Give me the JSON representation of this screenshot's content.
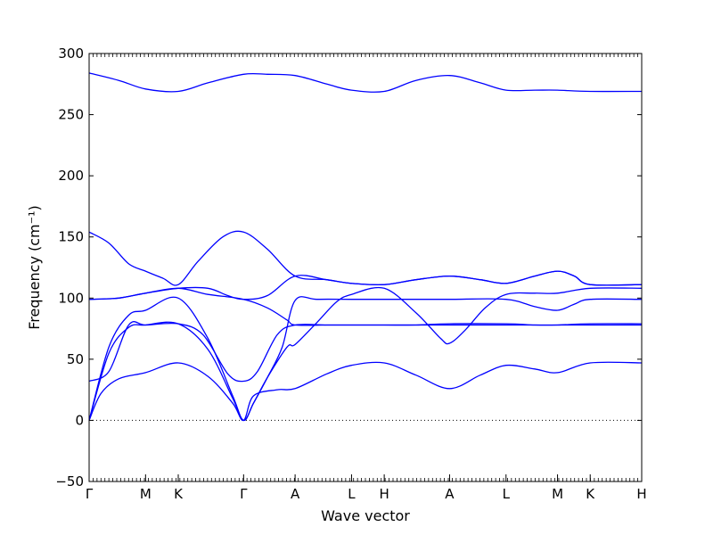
{
  "chart_data": {
    "type": "line",
    "title": "",
    "xlabel": "Wave vector",
    "ylabel": "Frequency (cm⁻¹)",
    "ylim": [
      -50,
      300
    ],
    "yticks": [
      -50,
      0,
      50,
      100,
      150,
      200,
      250,
      300
    ],
    "grid": false,
    "zero_line": "dotted",
    "line_color": "#0000ff",
    "high_symmetry_points": [
      {
        "label": "Γ",
        "x": 0.0
      },
      {
        "label": "M",
        "x": 0.57
      },
      {
        "label": "K",
        "x": 0.9
      },
      {
        "label": "Γ",
        "x": 1.56
      },
      {
        "label": "A",
        "x": 2.08
      },
      {
        "label": "L",
        "x": 2.65
      },
      {
        "label": "H",
        "x": 2.98
      },
      {
        "label": "A",
        "x": 3.64
      },
      {
        "label": "L",
        "x": 4.21
      },
      {
        "label": "M",
        "x": 4.73
      },
      {
        "label": "K",
        "x": 5.06
      },
      {
        "label": "H",
        "x": 5.58
      }
    ],
    "xlim": [
      0,
      5.58
    ],
    "series": [
      {
        "points": [
          [
            0,
            0
          ],
          [
            0.12,
            22
          ],
          [
            0.3,
            34
          ],
          [
            0.57,
            39
          ],
          [
            0.9,
            47
          ],
          [
            1.2,
            36
          ],
          [
            1.45,
            14
          ],
          [
            1.56,
            0
          ],
          [
            1.66,
            20
          ],
          [
            1.9,
            25
          ],
          [
            2.08,
            26
          ],
          [
            2.4,
            38
          ],
          [
            2.65,
            45
          ],
          [
            2.98,
            47
          ],
          [
            3.3,
            37
          ],
          [
            3.64,
            26
          ],
          [
            3.95,
            37
          ],
          [
            4.21,
            45
          ],
          [
            4.5,
            42
          ],
          [
            4.73,
            39
          ],
          [
            5.06,
            47
          ],
          [
            5.58,
            47
          ]
        ]
      },
      {
        "points": [
          [
            0,
            0
          ],
          [
            0.2,
            55
          ],
          [
            0.4,
            76
          ],
          [
            0.57,
            78
          ],
          [
            0.9,
            79
          ],
          [
            1.2,
            58
          ],
          [
            1.45,
            18
          ],
          [
            1.56,
            0
          ],
          [
            1.66,
            14
          ],
          [
            1.8,
            35
          ],
          [
            2.0,
            60
          ],
          [
            2.08,
            62
          ],
          [
            2.3,
            80
          ],
          [
            2.5,
            97
          ],
          [
            2.65,
            103
          ],
          [
            2.98,
            108
          ],
          [
            3.3,
            88
          ],
          [
            3.55,
            67
          ],
          [
            3.64,
            63
          ],
          [
            3.8,
            74
          ],
          [
            4.0,
            92
          ],
          [
            4.21,
            103
          ],
          [
            4.5,
            104
          ],
          [
            4.73,
            104
          ],
          [
            5.06,
            108
          ],
          [
            5.58,
            108
          ]
        ]
      },
      {
        "points": [
          [
            0,
            0
          ],
          [
            0.2,
            60
          ],
          [
            0.4,
            86
          ],
          [
            0.57,
            90
          ],
          [
            0.9,
            100
          ],
          [
            1.2,
            67
          ],
          [
            1.45,
            20
          ],
          [
            1.56,
            0
          ],
          [
            1.66,
            14
          ],
          [
            1.8,
            35
          ],
          [
            1.95,
            60
          ],
          [
            2.08,
            98
          ],
          [
            2.3,
            99
          ],
          [
            2.65,
            99
          ],
          [
            2.98,
            99
          ],
          [
            3.3,
            99
          ],
          [
            3.64,
            99
          ],
          [
            4.21,
            99
          ],
          [
            4.5,
            93
          ],
          [
            4.73,
            90
          ],
          [
            4.9,
            95
          ],
          [
            5.06,
            99
          ],
          [
            5.58,
            99
          ]
        ]
      },
      {
        "points": [
          [
            0,
            32
          ],
          [
            0.2,
            40
          ],
          [
            0.4,
            78
          ],
          [
            0.57,
            78
          ],
          [
            0.9,
            79
          ],
          [
            1.15,
            70
          ],
          [
            1.4,
            38
          ],
          [
            1.56,
            32
          ],
          [
            1.7,
            40
          ],
          [
            1.9,
            70
          ],
          [
            2.08,
            78
          ],
          [
            2.4,
            78
          ],
          [
            2.65,
            78
          ],
          [
            2.98,
            78
          ],
          [
            3.3,
            78
          ],
          [
            3.64,
            79
          ],
          [
            4.21,
            79
          ],
          [
            4.5,
            78
          ],
          [
            4.73,
            78
          ],
          [
            5.06,
            79
          ],
          [
            5.58,
            79
          ]
        ]
      },
      {
        "points": [
          [
            0,
            99
          ],
          [
            0.3,
            100
          ],
          [
            0.57,
            104
          ],
          [
            0.9,
            108
          ],
          [
            1.2,
            103
          ],
          [
            1.56,
            99
          ],
          [
            1.8,
            92
          ],
          [
            2.0,
            82
          ],
          [
            2.08,
            78
          ],
          [
            2.4,
            78
          ],
          [
            2.65,
            78
          ],
          [
            2.98,
            78
          ],
          [
            3.3,
            78
          ],
          [
            3.64,
            78
          ],
          [
            4.21,
            78
          ],
          [
            4.5,
            78
          ],
          [
            4.73,
            78
          ],
          [
            5.06,
            78
          ],
          [
            5.58,
            78
          ]
        ]
      },
      {
        "points": [
          [
            0,
            99
          ],
          [
            0.3,
            100
          ],
          [
            0.57,
            104
          ],
          [
            0.9,
            108
          ],
          [
            1.2,
            108
          ],
          [
            1.4,
            102
          ],
          [
            1.56,
            99
          ],
          [
            1.8,
            102
          ],
          [
            2.08,
            118
          ],
          [
            2.4,
            115
          ],
          [
            2.65,
            112
          ],
          [
            2.98,
            111
          ],
          [
            3.3,
            115
          ],
          [
            3.64,
            118
          ],
          [
            3.95,
            115
          ],
          [
            4.21,
            112
          ],
          [
            4.5,
            118
          ],
          [
            4.73,
            122
          ],
          [
            4.9,
            118
          ],
          [
            5.06,
            111
          ],
          [
            5.58,
            111
          ]
        ]
      },
      {
        "points": [
          [
            0,
            154
          ],
          [
            0.2,
            145
          ],
          [
            0.4,
            128
          ],
          [
            0.57,
            122
          ],
          [
            0.75,
            116
          ],
          [
            0.9,
            111
          ],
          [
            1.1,
            130
          ],
          [
            1.35,
            150
          ],
          [
            1.56,
            154
          ],
          [
            1.8,
            140
          ],
          [
            2.08,
            118
          ],
          [
            2.4,
            115
          ],
          [
            2.65,
            112
          ],
          [
            2.98,
            111
          ],
          [
            3.3,
            115
          ],
          [
            3.64,
            118
          ],
          [
            3.95,
            115
          ],
          [
            4.21,
            112
          ],
          [
            4.5,
            118
          ],
          [
            4.73,
            122
          ],
          [
            4.9,
            118
          ],
          [
            5.06,
            111
          ],
          [
            5.58,
            111
          ]
        ]
      },
      {
        "points": [
          [
            0,
            284
          ],
          [
            0.3,
            278
          ],
          [
            0.57,
            271
          ],
          [
            0.9,
            269
          ],
          [
            1.2,
            276
          ],
          [
            1.56,
            283
          ],
          [
            1.8,
            283
          ],
          [
            2.08,
            282
          ],
          [
            2.4,
            275
          ],
          [
            2.65,
            270
          ],
          [
            2.98,
            269
          ],
          [
            3.3,
            278
          ],
          [
            3.64,
            282
          ],
          [
            3.95,
            276
          ],
          [
            4.21,
            270
          ],
          [
            4.5,
            270
          ],
          [
            4.73,
            270
          ],
          [
            5.06,
            269
          ],
          [
            5.58,
            269
          ]
        ]
      }
    ]
  }
}
